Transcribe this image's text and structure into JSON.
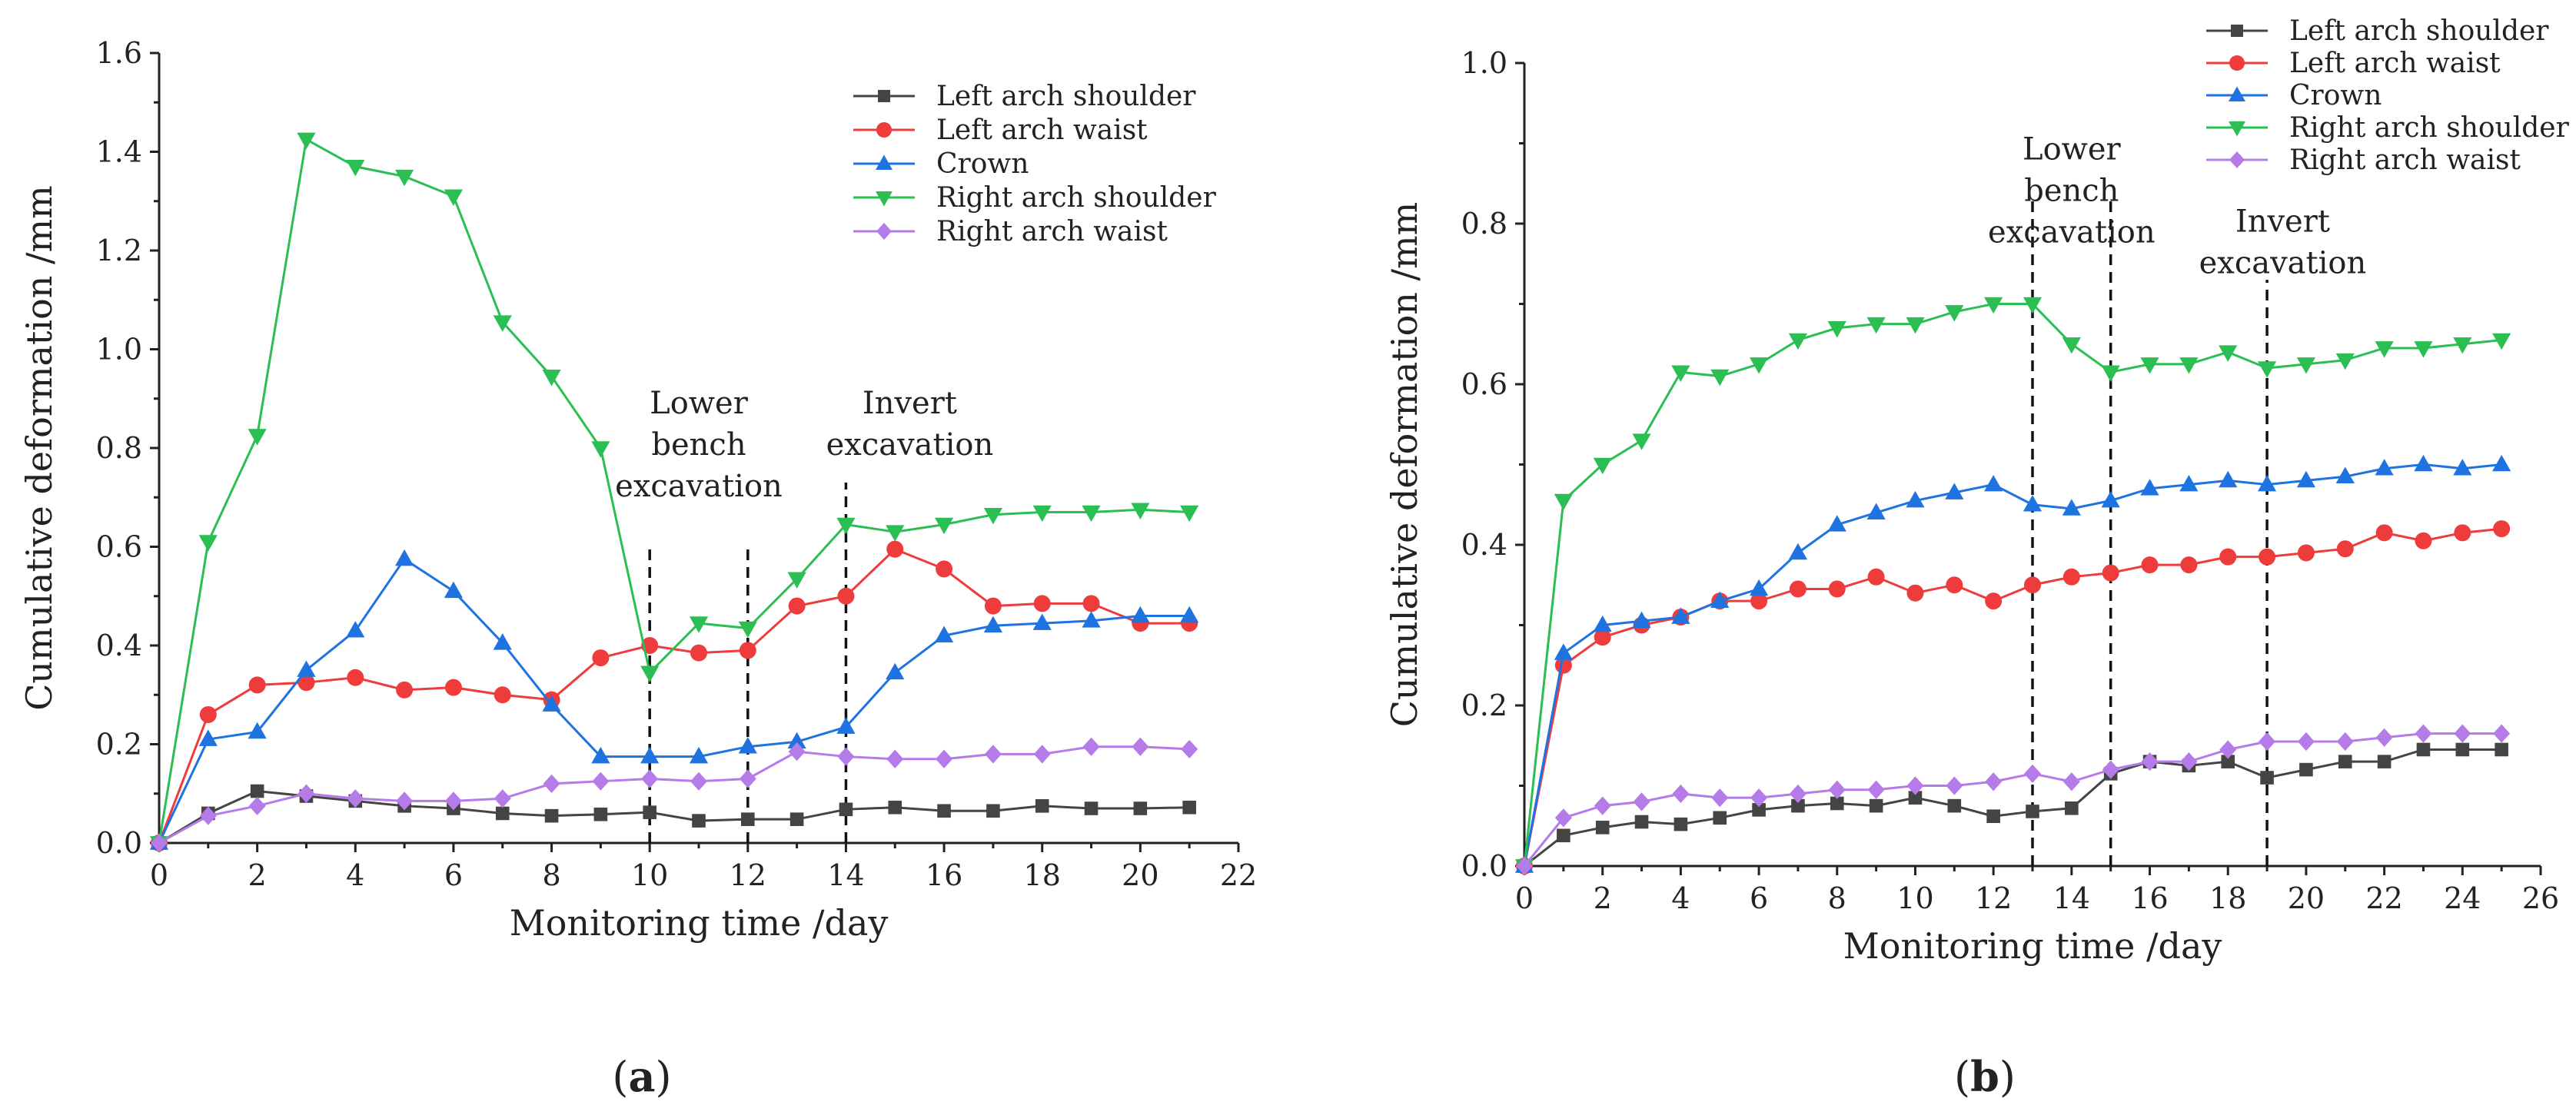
{
  "chart_data": [
    {
      "id": "a",
      "type": "line",
      "caption": "a",
      "xlabel": "Monitoring time /day",
      "ylabel": "Cumulative deformation /mm",
      "xlim": [
        0,
        22
      ],
      "ylim": [
        0,
        1.6
      ],
      "xticks": [
        0,
        2,
        4,
        6,
        8,
        10,
        12,
        14,
        16,
        18,
        20,
        22
      ],
      "xtick_labels": [
        "0",
        "2",
        "4",
        "6",
        "8",
        "10",
        "12",
        "14",
        "16",
        "18",
        "20",
        "22"
      ],
      "yticks": [
        0,
        0.2,
        0.4,
        0.6,
        0.8,
        1.0,
        1.2,
        1.4,
        1.6
      ],
      "ytick_labels": [
        "0.0",
        "0.2",
        "0.4",
        "0.6",
        "0.8",
        "1.0",
        "1.2",
        "1.4",
        "1.6"
      ],
      "legend_position": "top-right",
      "x": [
        0,
        1,
        2,
        3,
        4,
        5,
        6,
        7,
        8,
        9,
        10,
        11,
        12,
        13,
        14,
        15,
        16,
        17,
        18,
        19,
        20,
        21
      ],
      "series": [
        {
          "name": "Left arch shoulder",
          "color": "#444444",
          "marker": "square",
          "values": [
            0,
            0.06,
            0.105,
            0.095,
            0.085,
            0.075,
            0.07,
            0.06,
            0.055,
            0.058,
            0.062,
            0.045,
            0.048,
            0.048,
            0.068,
            0.072,
            0.065,
            0.065,
            0.075,
            0.07,
            0.07,
            0.072
          ]
        },
        {
          "name": "Left arch waist",
          "color": "#ee3b3b",
          "marker": "circle",
          "values": [
            0,
            0.26,
            0.32,
            0.325,
            0.335,
            0.31,
            0.315,
            0.3,
            0.29,
            0.375,
            0.4,
            0.385,
            0.39,
            0.48,
            0.5,
            0.595,
            0.555,
            0.48,
            0.485,
            0.485,
            0.445,
            0.445
          ]
        },
        {
          "name": "Crown",
          "color": "#1e73e0",
          "marker": "triangle-up",
          "values": [
            0,
            0.21,
            0.225,
            0.35,
            0.43,
            0.575,
            0.51,
            0.405,
            0.28,
            0.175,
            0.175,
            0.175,
            0.195,
            0.205,
            0.235,
            0.345,
            0.42,
            0.44,
            0.445,
            0.45,
            0.46,
            0.46
          ]
        },
        {
          "name": "Right arch shoulder",
          "color": "#2bbf53",
          "marker": "triangle-down",
          "values": [
            0,
            0.61,
            0.825,
            1.425,
            1.37,
            1.35,
            1.31,
            1.055,
            0.945,
            0.8,
            0.345,
            0.445,
            0.435,
            0.535,
            0.645,
            0.63,
            0.645,
            0.665,
            0.67,
            0.67,
            0.675,
            0.67
          ]
        },
        {
          "name": "Right arch waist",
          "color": "#b57be8",
          "marker": "diamond",
          "values": [
            0,
            0.055,
            0.075,
            0.1,
            0.09,
            0.085,
            0.085,
            0.09,
            0.12,
            0.125,
            0.13,
            0.125,
            0.13,
            0.185,
            0.175,
            0.17,
            0.17,
            0.18,
            0.18,
            0.195,
            0.195,
            0.19
          ]
        }
      ],
      "annotations": [
        {
          "lines": [
            "Lower",
            "bench",
            "excavation"
          ],
          "x": 11,
          "y": 0.87
        },
        {
          "lines": [
            "Invert",
            "excavation"
          ],
          "x": 15.3,
          "y": 0.87
        }
      ],
      "vlines": [
        {
          "x": 10,
          "y0": 0,
          "y1": 0.6,
          "style": "dotted"
        },
        {
          "x": 12,
          "y0": 0,
          "y1": 0.6,
          "style": "dotted"
        },
        {
          "x": 14,
          "y0": 0,
          "y1": 0.73,
          "style": "dashdot"
        }
      ]
    },
    {
      "id": "b",
      "type": "line",
      "caption": "b",
      "xlabel": "Monitoring time /day",
      "ylabel": "Cumulative deformation /mm",
      "xlim": [
        0,
        26
      ],
      "ylim": [
        0,
        1.0
      ],
      "xticks": [
        0,
        2,
        4,
        6,
        8,
        10,
        12,
        14,
        16,
        18,
        20,
        22,
        24,
        26
      ],
      "xtick_labels": [
        "0",
        "2",
        "4",
        "6",
        "8",
        "10",
        "12",
        "14",
        "16",
        "18",
        "20",
        "22",
        "24",
        "26"
      ],
      "yticks": [
        0,
        0.2,
        0.4,
        0.6,
        0.8,
        1.0
      ],
      "ytick_labels": [
        "0.0",
        "0.2",
        "0.4",
        "0.6",
        "0.8",
        "1.0"
      ],
      "legend_position": "top-right",
      "x": [
        0,
        1,
        2,
        3,
        4,
        5,
        6,
        7,
        8,
        9,
        10,
        11,
        12,
        13,
        14,
        15,
        16,
        17,
        18,
        19,
        20,
        21,
        22,
        23,
        24,
        25
      ],
      "series": [
        {
          "name": "Left arch shoulder",
          "color": "#444444",
          "marker": "square",
          "values": [
            0,
            0.038,
            0.048,
            0.055,
            0.052,
            0.06,
            0.07,
            0.075,
            0.078,
            0.075,
            0.085,
            0.075,
            0.062,
            0.068,
            0.072,
            0.115,
            0.13,
            0.125,
            0.13,
            0.11,
            0.12,
            0.13,
            0.13,
            0.145,
            0.145,
            0.145
          ]
        },
        {
          "name": "Left arch waist",
          "color": "#ee3b3b",
          "marker": "circle",
          "values": [
            0,
            0.25,
            0.285,
            0.3,
            0.31,
            0.33,
            0.33,
            0.345,
            0.345,
            0.36,
            0.34,
            0.35,
            0.33,
            0.35,
            0.36,
            0.365,
            0.375,
            0.375,
            0.385,
            0.385,
            0.39,
            0.395,
            0.415,
            0.405,
            0.415,
            0.42
          ]
        },
        {
          "name": "Crown",
          "color": "#1e73e0",
          "marker": "triangle-up",
          "values": [
            0,
            0.265,
            0.3,
            0.305,
            0.31,
            0.33,
            0.345,
            0.39,
            0.425,
            0.44,
            0.455,
            0.465,
            0.475,
            0.45,
            0.445,
            0.455,
            0.47,
            0.475,
            0.48,
            0.475,
            0.48,
            0.485,
            0.495,
            0.5,
            0.495,
            0.5
          ]
        },
        {
          "name": "Right arch shoulder",
          "color": "#2bbf53",
          "marker": "triangle-down",
          "values": [
            0,
            0.455,
            0.5,
            0.53,
            0.615,
            0.61,
            0.625,
            0.655,
            0.67,
            0.675,
            0.675,
            0.69,
            0.7,
            0.7,
            0.65,
            0.615,
            0.625,
            0.625,
            0.64,
            0.62,
            0.625,
            0.63,
            0.645,
            0.645,
            0.65,
            0.655
          ]
        },
        {
          "name": "Right arch waist",
          "color": "#b57be8",
          "marker": "diamond",
          "values": [
            0,
            0.06,
            0.075,
            0.08,
            0.09,
            0.085,
            0.085,
            0.09,
            0.095,
            0.095,
            0.1,
            0.1,
            0.105,
            0.115,
            0.105,
            0.12,
            0.13,
            0.13,
            0.145,
            0.155,
            0.155,
            0.155,
            0.16,
            0.165,
            0.165,
            0.165
          ]
        }
      ],
      "annotations": [
        {
          "lines": [
            "Lower",
            "bench",
            "excavation"
          ],
          "x": 14,
          "y": 0.88
        },
        {
          "lines": [
            "Invert",
            "excavation"
          ],
          "x": 19.4,
          "y": 0.79
        }
      ],
      "vlines": [
        {
          "x": 13,
          "y0": 0,
          "y1": 0.83,
          "style": "dashed"
        },
        {
          "x": 15,
          "y0": 0,
          "y1": 0.83,
          "style": "dashed"
        },
        {
          "x": 19,
          "y0": 0,
          "y1": 0.73,
          "style": "dashed"
        }
      ]
    }
  ]
}
